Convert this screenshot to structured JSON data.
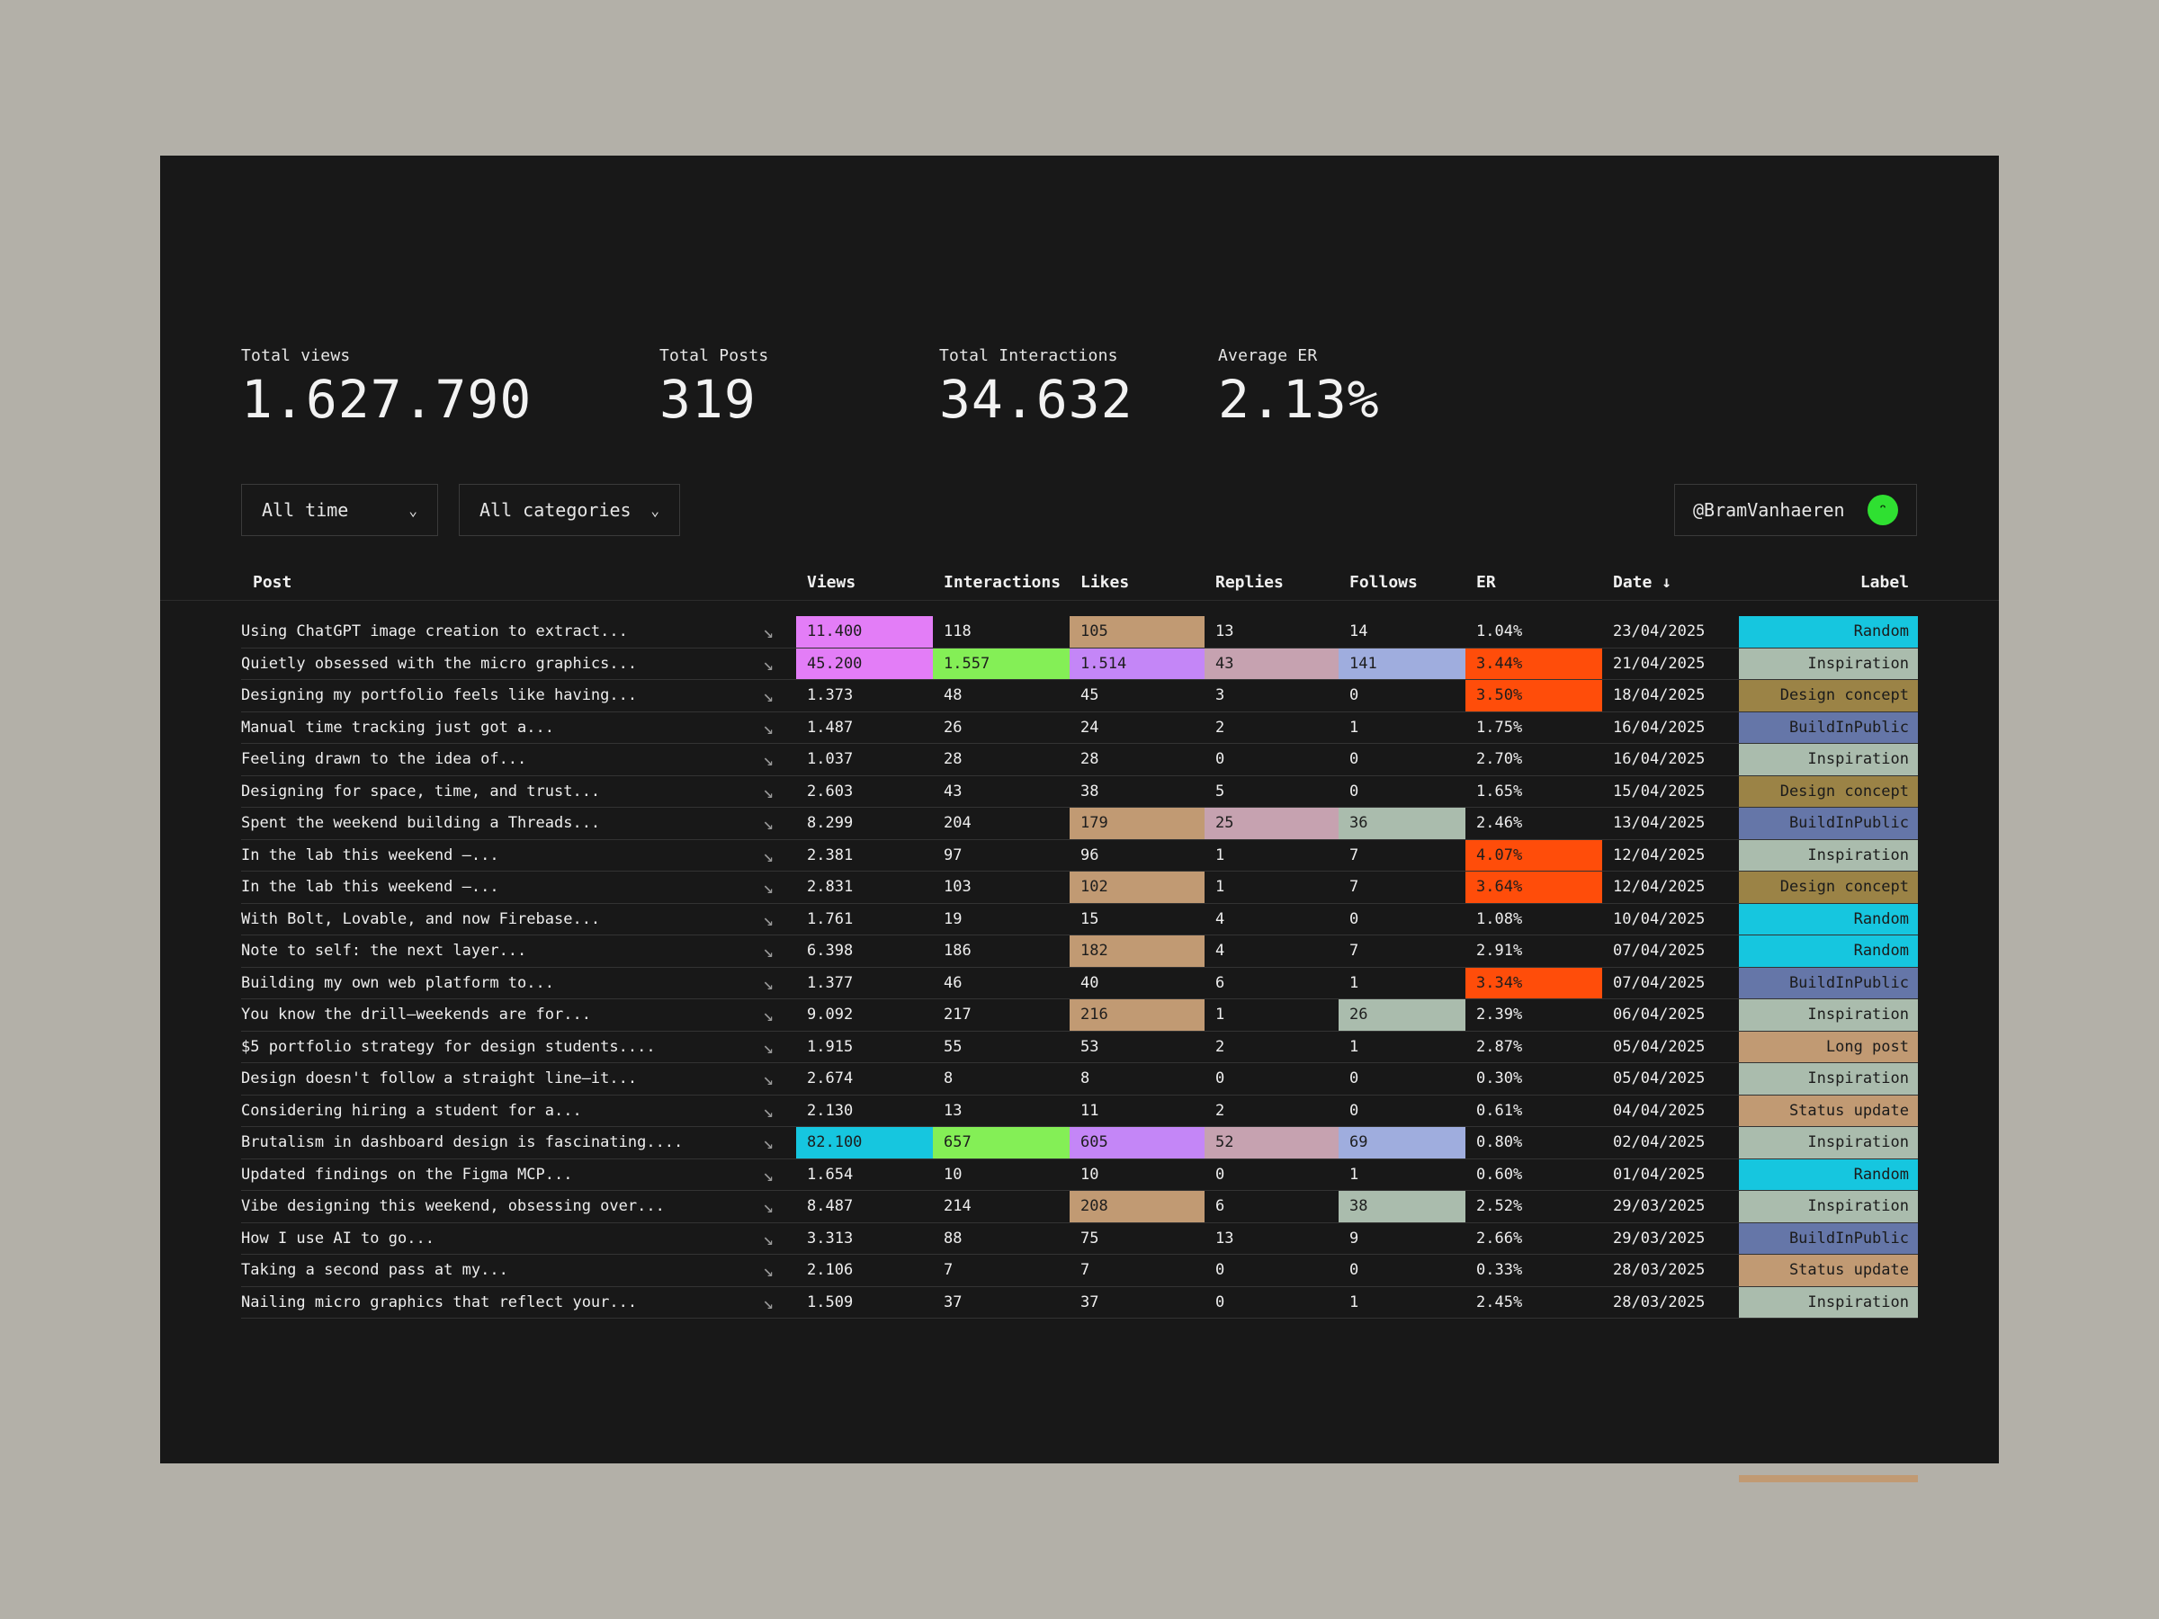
{
  "stats": [
    {
      "label": "Total views",
      "value": "1.627.790"
    },
    {
      "label": "Total Posts",
      "value": "319"
    },
    {
      "label": "Total Interactions",
      "value": "34.632"
    },
    {
      "label": "Average ER",
      "value": "2.13%"
    }
  ],
  "filters": {
    "time": "All time",
    "categories": "All categories"
  },
  "account": {
    "handle": "@BramVanhaeren",
    "avatar_icon": "smile-icon",
    "avatar_color": "#2fe031"
  },
  "table": {
    "headers": {
      "post": "Post",
      "views": "Views",
      "interactions": "Interactions",
      "likes": "Likes",
      "replies": "Replies",
      "follows": "Follows",
      "er": "ER",
      "date": "Date ↓",
      "label": "Label"
    },
    "row_icon": "arrow-down-right-icon",
    "label_colors": {
      "Random": "#16c6df",
      "Inspiration": "#aabcad",
      "Design concept": "#9b8346",
      "BuildInPublic": "#6576a8",
      "Long post": "#c19a73",
      "Status update": "#c19a73"
    },
    "highlight_colors": {
      "views": "#e37df7",
      "interactions": "#84ef56",
      "likes_high": "#c486f7",
      "likes_mid": "#c19a73",
      "replies": "#c6a2b0",
      "follows_high": "#9fadde",
      "follows_mid": "#aabcad",
      "er": "#ff4d0a",
      "views_top": "#16c6df"
    },
    "rows": [
      {
        "post": "Using ChatGPT image creation to extract...",
        "views": "11.400",
        "interactions": "118",
        "likes": "105",
        "replies": "13",
        "follows": "14",
        "er": "1.04%",
        "date": "23/04/2025",
        "label": "Random",
        "hl": {
          "views": "#e37df7",
          "likes": "#c19a73"
        }
      },
      {
        "post": "Quietly obsessed with the micro graphics...",
        "views": "45.200",
        "interactions": "1.557",
        "likes": "1.514",
        "replies": "43",
        "follows": "141",
        "er": "3.44%",
        "date": "21/04/2025",
        "label": "Inspiration",
        "hl": {
          "views": "#e37df7",
          "interactions": "#84ef56",
          "likes": "#c486f7",
          "replies": "#c6a2b0",
          "follows": "#9fadde",
          "er": "#ff4d0a"
        }
      },
      {
        "post": "Designing my portfolio feels like having...",
        "views": "1.373",
        "interactions": "48",
        "likes": "45",
        "replies": "3",
        "follows": "0",
        "er": "3.50%",
        "date": "18/04/2025",
        "label": "Design concept",
        "hl": {
          "er": "#ff4d0a"
        }
      },
      {
        "post": "Manual time tracking just got a...",
        "views": "1.487",
        "interactions": "26",
        "likes": "24",
        "replies": "2",
        "follows": "1",
        "er": "1.75%",
        "date": "16/04/2025",
        "label": "BuildInPublic",
        "hl": {}
      },
      {
        "post": "Feeling drawn to the idea of...",
        "views": "1.037",
        "interactions": "28",
        "likes": "28",
        "replies": "0",
        "follows": "0",
        "er": "2.70%",
        "date": "16/04/2025",
        "label": "Inspiration",
        "hl": {}
      },
      {
        "post": "Designing for space, time, and trust...",
        "views": "2.603",
        "interactions": "43",
        "likes": "38",
        "replies": "5",
        "follows": "0",
        "er": "1.65%",
        "date": "15/04/2025",
        "label": "Design concept",
        "hl": {}
      },
      {
        "post": "Spent the weekend building a Threads...",
        "views": "8.299",
        "interactions": "204",
        "likes": "179",
        "replies": "25",
        "follows": "36",
        "er": "2.46%",
        "date": "13/04/2025",
        "label": "BuildInPublic",
        "hl": {
          "likes": "#c19a73",
          "replies": "#c6a2b0",
          "follows": "#aabcad"
        }
      },
      {
        "post": "In the lab this weekend —...",
        "views": "2.381",
        "interactions": "97",
        "likes": "96",
        "replies": "1",
        "follows": "7",
        "er": "4.07%",
        "date": "12/04/2025",
        "label": "Inspiration",
        "hl": {
          "er": "#ff4d0a"
        }
      },
      {
        "post": "In the lab this weekend —...",
        "views": "2.831",
        "interactions": "103",
        "likes": "102",
        "replies": "1",
        "follows": "7",
        "er": "3.64%",
        "date": "12/04/2025",
        "label": "Design concept",
        "hl": {
          "likes": "#c19a73",
          "er": "#ff4d0a"
        }
      },
      {
        "post": "With Bolt, Lovable, and now Firebase...",
        "views": "1.761",
        "interactions": "19",
        "likes": "15",
        "replies": "4",
        "follows": "0",
        "er": "1.08%",
        "date": "10/04/2025",
        "label": "Random",
        "hl": {}
      },
      {
        "post": "Note to self: the next layer...",
        "views": "6.398",
        "interactions": "186",
        "likes": "182",
        "replies": "4",
        "follows": "7",
        "er": "2.91%",
        "date": "07/04/2025",
        "label": "Random",
        "hl": {
          "likes": "#c19a73"
        }
      },
      {
        "post": "Building my own web platform to...",
        "views": "1.377",
        "interactions": "46",
        "likes": "40",
        "replies": "6",
        "follows": "1",
        "er": "3.34%",
        "date": "07/04/2025",
        "label": "BuildInPublic",
        "hl": {
          "er": "#ff4d0a"
        }
      },
      {
        "post": "You know the drill—weekends are for...",
        "views": "9.092",
        "interactions": "217",
        "likes": "216",
        "replies": "1",
        "follows": "26",
        "er": "2.39%",
        "date": "06/04/2025",
        "label": "Inspiration",
        "hl": {
          "likes": "#c19a73",
          "follows": "#aabcad"
        }
      },
      {
        "post": "$5 portfolio strategy for design students....",
        "views": "1.915",
        "interactions": "55",
        "likes": "53",
        "replies": "2",
        "follows": "1",
        "er": "2.87%",
        "date": "05/04/2025",
        "label": "Long post",
        "hl": {}
      },
      {
        "post": "Design doesn't follow a straight line—it...",
        "views": "2.674",
        "interactions": "8",
        "likes": "8",
        "replies": "0",
        "follows": "0",
        "er": "0.30%",
        "date": "05/04/2025",
        "label": "Inspiration",
        "hl": {}
      },
      {
        "post": "Considering hiring a student for a...",
        "views": "2.130",
        "interactions": "13",
        "likes": "11",
        "replies": "2",
        "follows": "0",
        "er": "0.61%",
        "date": "04/04/2025",
        "label": "Status update",
        "hl": {}
      },
      {
        "post": "Brutalism in dashboard design is fascinating....",
        "views": "82.100",
        "interactions": "657",
        "likes": "605",
        "replies": "52",
        "follows": "69",
        "er": "0.80%",
        "date": "02/04/2025",
        "label": "Inspiration",
        "hl": {
          "views": "#16c6df",
          "interactions": "#84ef56",
          "likes": "#c486f7",
          "replies": "#c6a2b0",
          "follows": "#9fadde"
        }
      },
      {
        "post": "Updated findings on the Figma MCP...",
        "views": "1.654",
        "interactions": "10",
        "likes": "10",
        "replies": "0",
        "follows": "1",
        "er": "0.60%",
        "date": "01/04/2025",
        "label": "Random",
        "hl": {}
      },
      {
        "post": "Vibe designing this weekend, obsessing over...",
        "views": "8.487",
        "interactions": "214",
        "likes": "208",
        "replies": "6",
        "follows": "38",
        "er": "2.52%",
        "date": "29/03/2025",
        "label": "Inspiration",
        "hl": {
          "likes": "#c19a73",
          "follows": "#aabcad"
        }
      },
      {
        "post": "How I use AI to go...",
        "views": "3.313",
        "interactions": "88",
        "likes": "75",
        "replies": "13",
        "follows": "9",
        "er": "2.66%",
        "date": "29/03/2025",
        "label": "BuildInPublic",
        "hl": {}
      },
      {
        "post": "Taking a second pass at my...",
        "views": "2.106",
        "interactions": "7",
        "likes": "7",
        "replies": "0",
        "follows": "0",
        "er": "0.33%",
        "date": "28/03/2025",
        "label": "Status update",
        "hl": {}
      },
      {
        "post": "Nailing micro graphics that reflect your...",
        "views": "1.509",
        "interactions": "37",
        "likes": "37",
        "replies": "0",
        "follows": "1",
        "er": "2.45%",
        "date": "28/03/2025",
        "label": "Inspiration",
        "hl": {}
      }
    ]
  }
}
